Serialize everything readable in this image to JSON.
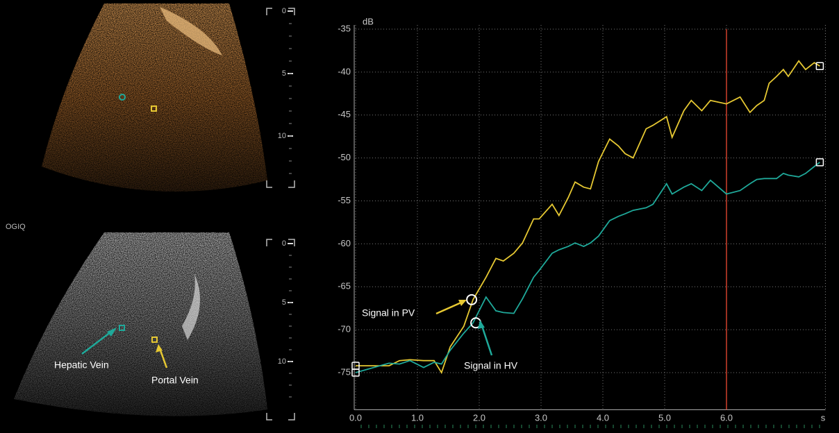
{
  "chart_data": {
    "type": "line",
    "y_label": "dB",
    "x_label": "s",
    "x": [
      0.0,
      0.54,
      0.71,
      0.88,
      1.1,
      1.27,
      1.39,
      1.53,
      1.75,
      1.9,
      2.11,
      2.27,
      2.39,
      2.56,
      2.7,
      2.88,
      2.97,
      3.18,
      3.29,
      3.44,
      3.55,
      3.69,
      3.8,
      3.93,
      4.11,
      4.25,
      4.36,
      4.49,
      4.7,
      4.81,
      5.03,
      5.12,
      5.31,
      5.43,
      5.6,
      5.74,
      6.0,
      6.22,
      6.38,
      6.49,
      6.61,
      6.69,
      6.81,
      6.92,
      7.0,
      7.17,
      7.28,
      7.42,
      7.51
    ],
    "series": [
      {
        "name": "Signal in PV",
        "color": "#e6c832",
        "values": [
          -74.2,
          -74.2,
          -73.6,
          -73.5,
          -73.6,
          -73.6,
          -75.0,
          -72.0,
          -69.6,
          -66.5,
          -63.9,
          -61.7,
          -62.0,
          -61.1,
          -59.9,
          -57.1,
          -57.1,
          -55.4,
          -56.7,
          -54.6,
          -52.8,
          -53.4,
          -53.6,
          -50.4,
          -47.8,
          -48.6,
          -49.5,
          -50.0,
          -46.6,
          -46.2,
          -45.2,
          -47.6,
          -44.5,
          -43.3,
          -44.5,
          -43.3,
          -43.7,
          -42.9,
          -44.7,
          -43.9,
          -43.3,
          -41.3,
          -40.5,
          -39.7,
          -40.5,
          -38.7,
          -39.7,
          -38.9,
          -39.3
        ]
      },
      {
        "name": "Signal in HV",
        "color": "#1fa99a",
        "values": [
          -75.0,
          -73.9,
          -74.0,
          -73.6,
          -74.4,
          -73.8,
          -74.0,
          -72.4,
          -70.4,
          -69.2,
          -66.2,
          -67.8,
          -68.0,
          -68.1,
          -66.4,
          -63.9,
          -63.1,
          -61.1,
          -60.7,
          -60.3,
          -59.9,
          -60.3,
          -59.9,
          -59.1,
          -57.3,
          -56.8,
          -56.5,
          -56.1,
          -55.8,
          -55.4,
          -53.0,
          -54.2,
          -53.4,
          -53.0,
          -53.8,
          -52.6,
          -54.2,
          -53.8,
          -53.0,
          -52.5,
          -52.4,
          -52.4,
          -52.4,
          -51.8,
          -52.0,
          -52.2,
          -51.8,
          -51.0,
          -50.5
        ]
      }
    ],
    "xlim": [
      0,
      7.6
    ],
    "ylim": [
      -79,
      -35
    ],
    "xticks": [
      {
        "value": 0,
        "label": "0.0"
      },
      {
        "value": 1,
        "label": "1.0"
      },
      {
        "value": 2,
        "label": "2.0"
      },
      {
        "value": 3,
        "label": "3.0"
      },
      {
        "value": 4,
        "label": "4.0"
      },
      {
        "value": 5,
        "label": "5.0"
      },
      {
        "value": 6,
        "label": "6.0"
      }
    ],
    "yticks": [
      -35,
      -40,
      -45,
      -50,
      -55,
      -60,
      -65,
      -70,
      -75
    ],
    "grid": true,
    "marker_line": {
      "value": 6.0,
      "color": "#d0402c"
    }
  },
  "ultrasound": {
    "system_label": "OGIQ",
    "depth_ticks": [
      0,
      5,
      10
    ],
    "annotations": [
      "Hepatic Vein",
      "Portal Vein"
    ]
  }
}
